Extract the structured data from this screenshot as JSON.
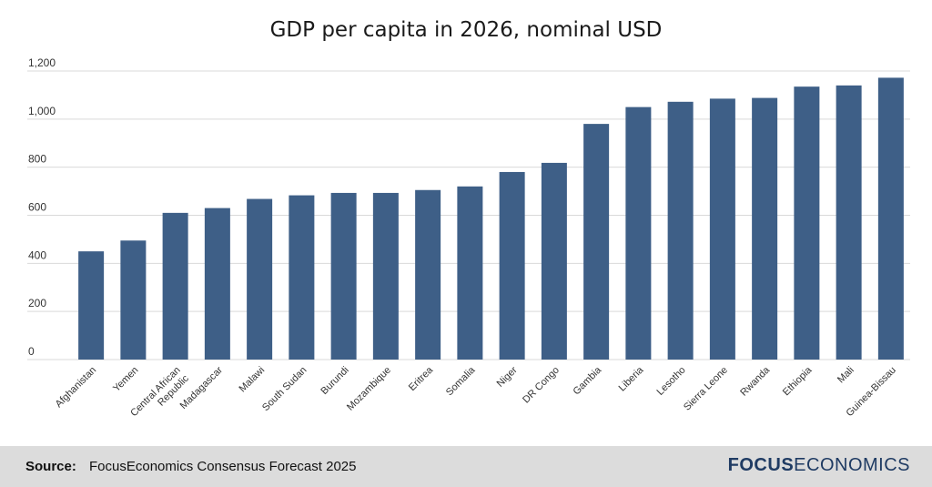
{
  "chart_data": {
    "type": "bar",
    "title": "GDP per capita in 2026, nominal USD",
    "xlabel": "",
    "ylabel": "",
    "ylim": [
      0,
      1200
    ],
    "yticks": [
      0,
      200,
      400,
      600,
      800,
      1000,
      1200
    ],
    "ytick_labels": [
      "0",
      "200",
      "400",
      "600",
      "800",
      "1,000",
      "1,200"
    ],
    "grid": true,
    "bar_color": "#3e5f87",
    "categories": [
      "Afghanistan",
      "Yemen",
      "Central African Republic",
      "Madagascar",
      "Malawi",
      "South Sudan",
      "Burundi",
      "Mozambique",
      "Eritrea",
      "Somalia",
      "Niger",
      "DR Congo",
      "Gambia",
      "Liberia",
      "Lesotho",
      "Sierra Leone",
      "Rwanda",
      "Ethiopia",
      "Mali",
      "Guinea-Bissau"
    ],
    "category_lines": [
      [
        "Afghanistan"
      ],
      [
        "Yemen"
      ],
      [
        "Central African",
        "Republic"
      ],
      [
        "Madagascar"
      ],
      [
        "Malawi"
      ],
      [
        "South Sudan"
      ],
      [
        "Burundi"
      ],
      [
        "Mozambique"
      ],
      [
        "Eritrea"
      ],
      [
        "Somalia"
      ],
      [
        "Niger"
      ],
      [
        "DR Congo"
      ],
      [
        "Gambia"
      ],
      [
        "Liberia"
      ],
      [
        "Lesotho"
      ],
      [
        "Sierra Leone"
      ],
      [
        "Rwanda"
      ],
      [
        "Ethiopia"
      ],
      [
        "Mali"
      ],
      [
        "Guinea-Bissau"
      ]
    ],
    "values": [
      450,
      495,
      610,
      630,
      668,
      683,
      693,
      693,
      705,
      720,
      780,
      818,
      980,
      1050,
      1072,
      1085,
      1088,
      1135,
      1140,
      1172
    ]
  },
  "footer": {
    "source_label": "Source:",
    "source_text": "FocusEconomics Consensus Forecast 2025",
    "logo_bold": "FOCUS",
    "logo_regular": "ECONOMICS"
  }
}
